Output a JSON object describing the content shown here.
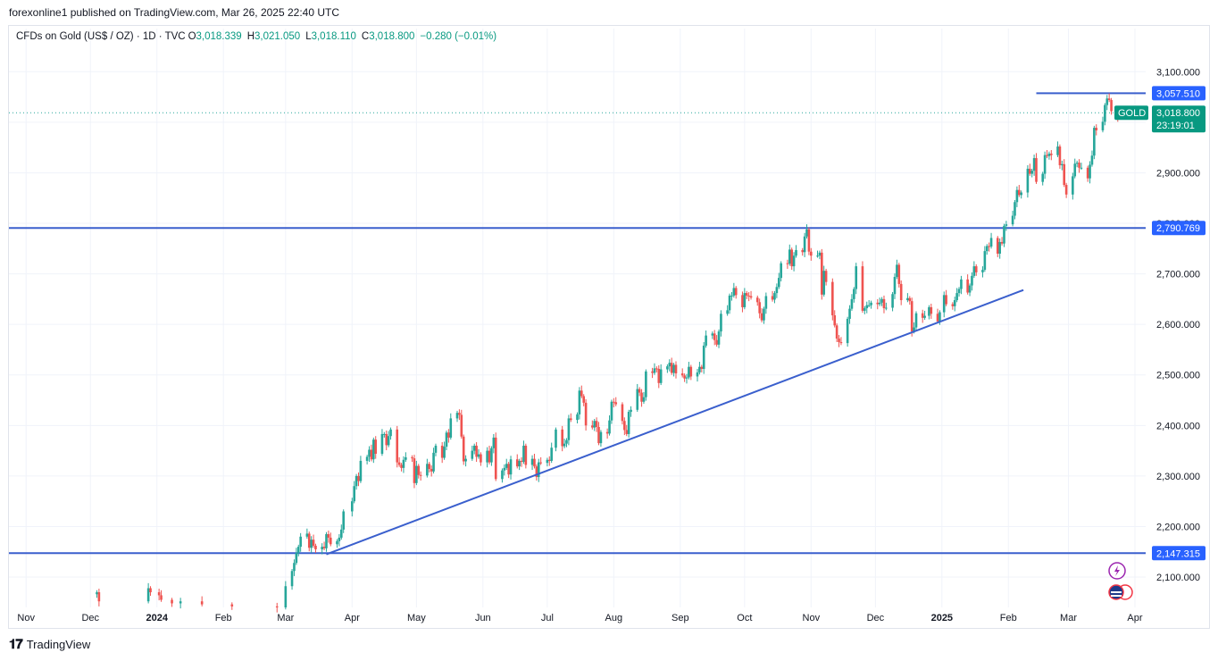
{
  "header": {
    "publisher_line": "forexonline1 published on TradingView.com, Mar 26, 2025 22:40 UTC"
  },
  "legend": {
    "symbol": "CFDs on Gold (US$ / OZ) · 1D · TVC",
    "open_label": "O",
    "open": "3,018.339",
    "high_label": "H",
    "high": "3,021.050",
    "low_label": "L",
    "low": "3,018.110",
    "close_label": "C",
    "close": "3,018.800",
    "change": "−0.280 (−0.01%)"
  },
  "footer": {
    "brand": "TradingView"
  },
  "colors": {
    "up": "#089981",
    "down": "#f23645",
    "line": "#2962ff",
    "trend": "#3a5fcd",
    "up_candle": "#26a69a",
    "down_candle": "#ef5350"
  },
  "chart_data": {
    "type": "candlestick",
    "symbol": "GOLD",
    "y_range": [
      2040,
      3150
    ],
    "y_ticks": [
      2100,
      2200,
      2300,
      2400,
      2500,
      2600,
      2700,
      2800,
      2900,
      3000,
      3100
    ],
    "y_tick_labels": [
      "2,100.000",
      "2,200.000",
      "2,300.000",
      "2,400.000",
      "2,500.000",
      "2,600.000",
      "2,700.000",
      "2,800.000",
      "2,900.000",
      "3,000.000",
      "3,100.000"
    ],
    "x_labels": [
      "Nov",
      "Dec",
      "2024",
      "Feb",
      "Mar",
      "Apr",
      "May",
      "Jun",
      "Jul",
      "Aug",
      "Sep",
      "Oct",
      "Nov",
      "Dec",
      "2025",
      "Feb",
      "Mar",
      "Apr"
    ],
    "x_label_dates": [
      "2023-11-01",
      "2023-12-01",
      "2024-01-01",
      "2024-02-01",
      "2024-03-01",
      "2024-04-01",
      "2024-05-01",
      "2024-06-01",
      "2024-07-01",
      "2024-08-01",
      "2024-09-01",
      "2024-10-01",
      "2024-11-01",
      "2024-12-01",
      "2025-01-01",
      "2025-02-01",
      "2025-03-01",
      "2025-04-01"
    ],
    "x_range": [
      "2023-10-24",
      "2025-04-06"
    ],
    "horizontal_lines": [
      {
        "price": 3057.51,
        "label": "3,057.510",
        "from": "2025-02-14",
        "to": "2025-04-06"
      },
      {
        "price": 2790.769,
        "label": "2,790.769",
        "from": "2023-10-24",
        "to": "2025-04-06"
      },
      {
        "price": 2147.315,
        "label": "2,147.315",
        "from": "2023-10-24",
        "to": "2025-04-06"
      }
    ],
    "trend_line": {
      "from": [
        "2024-03-20",
        2145
      ],
      "to": [
        "2025-02-08",
        2668
      ]
    },
    "last_price": {
      "price": 3018.8,
      "label": "3,018.800",
      "countdown": "23:19:01",
      "symbol_tag": "GOLD"
    },
    "closes": [
      [
        "2023-12-04",
        2070
      ],
      [
        "2023-12-05",
        2052
      ],
      [
        "2023-12-28",
        2078
      ],
      [
        "2023-12-29",
        2070
      ],
      [
        "2024-01-02",
        2064
      ],
      [
        "2024-01-03",
        2055
      ],
      [
        "2024-01-08",
        2048
      ],
      [
        "2024-01-12",
        2052
      ],
      [
        "2024-01-22",
        2046
      ],
      [
        "2024-02-05",
        2042
      ],
      [
        "2024-02-26",
        2040
      ],
      [
        "2024-03-01",
        2082
      ],
      [
        "2024-03-04",
        2112
      ],
      [
        "2024-03-05",
        2128
      ],
      [
        "2024-03-06",
        2148
      ],
      [
        "2024-03-07",
        2160
      ],
      [
        "2024-03-08",
        2180
      ],
      [
        "2024-03-11",
        2186
      ],
      [
        "2024-03-12",
        2158
      ],
      [
        "2024-03-13",
        2174
      ],
      [
        "2024-03-14",
        2162
      ],
      [
        "2024-03-15",
        2155
      ],
      [
        "2024-03-18",
        2160
      ],
      [
        "2024-03-19",
        2157
      ],
      [
        "2024-03-20",
        2185
      ],
      [
        "2024-03-21",
        2178
      ],
      [
        "2024-03-22",
        2165
      ],
      [
        "2024-03-25",
        2171
      ],
      [
        "2024-03-26",
        2178
      ],
      [
        "2024-03-27",
        2194
      ],
      [
        "2024-03-28",
        2230
      ],
      [
        "2024-04-01",
        2250
      ],
      [
        "2024-04-02",
        2280
      ],
      [
        "2024-04-03",
        2300
      ],
      [
        "2024-04-04",
        2290
      ],
      [
        "2024-04-05",
        2330
      ],
      [
        "2024-04-08",
        2338
      ],
      [
        "2024-04-09",
        2352
      ],
      [
        "2024-04-10",
        2333
      ],
      [
        "2024-04-11",
        2372
      ],
      [
        "2024-04-12",
        2344
      ],
      [
        "2024-04-15",
        2383
      ],
      [
        "2024-04-16",
        2383
      ],
      [
        "2024-04-17",
        2361
      ],
      [
        "2024-04-18",
        2379
      ],
      [
        "2024-04-19",
        2392
      ],
      [
        "2024-04-22",
        2327
      ],
      [
        "2024-04-23",
        2322
      ],
      [
        "2024-04-24",
        2316
      ],
      [
        "2024-04-25",
        2332
      ],
      [
        "2024-04-26",
        2337
      ],
      [
        "2024-04-29",
        2335
      ],
      [
        "2024-04-30",
        2286
      ],
      [
        "2024-05-01",
        2320
      ],
      [
        "2024-05-02",
        2302
      ],
      [
        "2024-05-03",
        2301
      ],
      [
        "2024-05-06",
        2324
      ],
      [
        "2024-05-07",
        2314
      ],
      [
        "2024-05-08",
        2309
      ],
      [
        "2024-05-09",
        2346
      ],
      [
        "2024-05-10",
        2360
      ],
      [
        "2024-05-13",
        2336
      ],
      [
        "2024-05-14",
        2358
      ],
      [
        "2024-05-15",
        2386
      ],
      [
        "2024-05-16",
        2376
      ],
      [
        "2024-05-17",
        2414
      ],
      [
        "2024-05-20",
        2425
      ],
      [
        "2024-05-21",
        2421
      ],
      [
        "2024-05-22",
        2378
      ],
      [
        "2024-05-23",
        2329
      ],
      [
        "2024-05-24",
        2334
      ],
      [
        "2024-05-27",
        2350
      ],
      [
        "2024-05-28",
        2360
      ],
      [
        "2024-05-29",
        2338
      ],
      [
        "2024-05-30",
        2343
      ],
      [
        "2024-05-31",
        2327
      ],
      [
        "2024-06-03",
        2350
      ],
      [
        "2024-06-04",
        2327
      ],
      [
        "2024-06-05",
        2355
      ],
      [
        "2024-06-06",
        2376
      ],
      [
        "2024-06-07",
        2294
      ],
      [
        "2024-06-10",
        2311
      ],
      [
        "2024-06-11",
        2316
      ],
      [
        "2024-06-12",
        2324
      ],
      [
        "2024-06-13",
        2303
      ],
      [
        "2024-06-14",
        2333
      ],
      [
        "2024-06-17",
        2319
      ],
      [
        "2024-06-18",
        2330
      ],
      [
        "2024-06-19",
        2328
      ],
      [
        "2024-06-20",
        2360
      ],
      [
        "2024-06-21",
        2322
      ],
      [
        "2024-06-24",
        2334
      ],
      [
        "2024-06-25",
        2319
      ],
      [
        "2024-06-26",
        2298
      ],
      [
        "2024-06-27",
        2327
      ],
      [
        "2024-06-28",
        2326
      ],
      [
        "2024-07-01",
        2332
      ],
      [
        "2024-07-02",
        2330
      ],
      [
        "2024-07-03",
        2356
      ],
      [
        "2024-07-05",
        2392
      ],
      [
        "2024-07-08",
        2359
      ],
      [
        "2024-07-09",
        2364
      ],
      [
        "2024-07-10",
        2371
      ],
      [
        "2024-07-11",
        2414
      ],
      [
        "2024-07-12",
        2411
      ],
      [
        "2024-07-15",
        2422
      ],
      [
        "2024-07-16",
        2469
      ],
      [
        "2024-07-17",
        2458
      ],
      [
        "2024-07-18",
        2445
      ],
      [
        "2024-07-19",
        2400
      ],
      [
        "2024-07-22",
        2396
      ],
      [
        "2024-07-23",
        2409
      ],
      [
        "2024-07-24",
        2397
      ],
      [
        "2024-07-25",
        2365
      ],
      [
        "2024-07-26",
        2387
      ],
      [
        "2024-07-29",
        2384
      ],
      [
        "2024-07-30",
        2410
      ],
      [
        "2024-07-31",
        2447
      ],
      [
        "2024-08-01",
        2446
      ],
      [
        "2024-08-02",
        2442
      ],
      [
        "2024-08-05",
        2409
      ],
      [
        "2024-08-06",
        2391
      ],
      [
        "2024-08-07",
        2383
      ],
      [
        "2024-08-08",
        2427
      ],
      [
        "2024-08-09",
        2431
      ],
      [
        "2024-08-12",
        2472
      ],
      [
        "2024-08-13",
        2465
      ],
      [
        "2024-08-14",
        2447
      ],
      [
        "2024-08-15",
        2456
      ],
      [
        "2024-08-16",
        2507
      ],
      [
        "2024-08-19",
        2504
      ],
      [
        "2024-08-20",
        2513
      ],
      [
        "2024-08-21",
        2512
      ],
      [
        "2024-08-22",
        2484
      ],
      [
        "2024-08-23",
        2511
      ],
      [
        "2024-08-26",
        2517
      ],
      [
        "2024-08-27",
        2524
      ],
      [
        "2024-08-28",
        2504
      ],
      [
        "2024-08-29",
        2520
      ],
      [
        "2024-08-30",
        2503
      ],
      [
        "2024-09-02",
        2499
      ],
      [
        "2024-09-03",
        2493
      ],
      [
        "2024-09-04",
        2495
      ],
      [
        "2024-09-05",
        2516
      ],
      [
        "2024-09-06",
        2497
      ],
      [
        "2024-09-09",
        2505
      ],
      [
        "2024-09-10",
        2516
      ],
      [
        "2024-09-11",
        2512
      ],
      [
        "2024-09-12",
        2558
      ],
      [
        "2024-09-13",
        2578
      ],
      [
        "2024-09-16",
        2582
      ],
      [
        "2024-09-17",
        2569
      ],
      [
        "2024-09-18",
        2560
      ],
      [
        "2024-09-19",
        2586
      ],
      [
        "2024-09-20",
        2621
      ],
      [
        "2024-09-23",
        2628
      ],
      [
        "2024-09-24",
        2657
      ],
      [
        "2024-09-25",
        2657
      ],
      [
        "2024-09-26",
        2672
      ],
      [
        "2024-09-27",
        2658
      ],
      [
        "2024-09-30",
        2634
      ],
      [
        "2024-10-01",
        2662
      ],
      [
        "2024-10-02",
        2657
      ],
      [
        "2024-10-03",
        2656
      ],
      [
        "2024-10-04",
        2653
      ],
      [
        "2024-10-07",
        2644
      ],
      [
        "2024-10-08",
        2622
      ],
      [
        "2024-10-09",
        2608
      ],
      [
        "2024-10-10",
        2631
      ],
      [
        "2024-10-11",
        2656
      ],
      [
        "2024-10-14",
        2649
      ],
      [
        "2024-10-15",
        2662
      ],
      [
        "2024-10-16",
        2674
      ],
      [
        "2024-10-17",
        2692
      ],
      [
        "2024-10-18",
        2721
      ],
      [
        "2024-10-21",
        2720
      ],
      [
        "2024-10-22",
        2748
      ],
      [
        "2024-10-23",
        2715
      ],
      [
        "2024-10-24",
        2736
      ],
      [
        "2024-10-25",
        2747
      ],
      [
        "2024-10-28",
        2743
      ],
      [
        "2024-10-29",
        2774
      ],
      [
        "2024-10-30",
        2788
      ],
      [
        "2024-10-31",
        2744
      ],
      [
        "2024-11-01",
        2736
      ],
      [
        "2024-11-04",
        2736
      ],
      [
        "2024-11-05",
        2742
      ],
      [
        "2024-11-06",
        2659
      ],
      [
        "2024-11-07",
        2706
      ],
      [
        "2024-11-08",
        2684
      ],
      [
        "2024-11-11",
        2618
      ],
      [
        "2024-11-12",
        2598
      ],
      [
        "2024-11-13",
        2572
      ],
      [
        "2024-11-14",
        2565
      ],
      [
        "2024-11-15",
        2563
      ],
      [
        "2024-11-18",
        2611
      ],
      [
        "2024-11-19",
        2631
      ],
      [
        "2024-11-20",
        2650
      ],
      [
        "2024-11-21",
        2670
      ],
      [
        "2024-11-22",
        2715
      ],
      [
        "2024-11-25",
        2627
      ],
      [
        "2024-11-26",
        2632
      ],
      [
        "2024-11-27",
        2638
      ],
      [
        "2024-11-28",
        2638
      ],
      [
        "2024-11-29",
        2643
      ],
      [
        "2024-12-02",
        2640
      ],
      [
        "2024-12-03",
        2643
      ],
      [
        "2024-12-04",
        2650
      ],
      [
        "2024-12-05",
        2632
      ],
      [
        "2024-12-06",
        2633
      ],
      [
        "2024-12-09",
        2660
      ],
      [
        "2024-12-10",
        2694
      ],
      [
        "2024-12-11",
        2718
      ],
      [
        "2024-12-12",
        2680
      ],
      [
        "2024-12-13",
        2648
      ],
      [
        "2024-12-16",
        2652
      ],
      [
        "2024-12-17",
        2646
      ],
      [
        "2024-12-18",
        2586
      ],
      [
        "2024-12-19",
        2594
      ],
      [
        "2024-12-20",
        2622
      ],
      [
        "2024-12-23",
        2613
      ],
      [
        "2024-12-24",
        2617
      ],
      [
        "2024-12-26",
        2634
      ],
      [
        "2024-12-27",
        2621
      ],
      [
        "2024-12-30",
        2606
      ],
      [
        "2024-12-31",
        2624
      ],
      [
        "2025-01-02",
        2658
      ],
      [
        "2025-01-03",
        2640
      ],
      [
        "2025-01-06",
        2636
      ],
      [
        "2025-01-07",
        2648
      ],
      [
        "2025-01-08",
        2662
      ],
      [
        "2025-01-09",
        2670
      ],
      [
        "2025-01-10",
        2689
      ],
      [
        "2025-01-13",
        2663
      ],
      [
        "2025-01-14",
        2677
      ],
      [
        "2025-01-15",
        2696
      ],
      [
        "2025-01-16",
        2715
      ],
      [
        "2025-01-17",
        2703
      ],
      [
        "2025-01-20",
        2708
      ],
      [
        "2025-01-21",
        2745
      ],
      [
        "2025-01-22",
        2755
      ],
      [
        "2025-01-23",
        2754
      ],
      [
        "2025-01-24",
        2771
      ],
      [
        "2025-01-27",
        2740
      ],
      [
        "2025-01-28",
        2763
      ],
      [
        "2025-01-29",
        2760
      ],
      [
        "2025-01-30",
        2795
      ],
      [
        "2025-01-31",
        2798
      ],
      [
        "2025-02-03",
        2815
      ],
      [
        "2025-02-04",
        2842
      ],
      [
        "2025-02-05",
        2866
      ],
      [
        "2025-02-06",
        2856
      ],
      [
        "2025-02-07",
        2861
      ],
      [
        "2025-02-10",
        2908
      ],
      [
        "2025-02-11",
        2898
      ],
      [
        "2025-02-12",
        2904
      ],
      [
        "2025-02-13",
        2929
      ],
      [
        "2025-02-14",
        2882
      ],
      [
        "2025-02-17",
        2898
      ],
      [
        "2025-02-18",
        2935
      ],
      [
        "2025-02-19",
        2933
      ],
      [
        "2025-02-20",
        2938
      ],
      [
        "2025-02-21",
        2935
      ],
      [
        "2025-02-24",
        2952
      ],
      [
        "2025-02-25",
        2915
      ],
      [
        "2025-02-26",
        2917
      ],
      [
        "2025-02-27",
        2876
      ],
      [
        "2025-02-28",
        2857
      ],
      [
        "2025-03-03",
        2893
      ],
      [
        "2025-03-04",
        2918
      ],
      [
        "2025-03-05",
        2920
      ],
      [
        "2025-03-06",
        2910
      ],
      [
        "2025-03-07",
        2910
      ],
      [
        "2025-03-10",
        2889
      ],
      [
        "2025-03-11",
        2916
      ],
      [
        "2025-03-12",
        2934
      ],
      [
        "2025-03-13",
        2989
      ],
      [
        "2025-03-14",
        2984
      ],
      [
        "2025-03-17",
        3001
      ],
      [
        "2025-03-18",
        3034
      ],
      [
        "2025-03-19",
        3047
      ],
      [
        "2025-03-20",
        3044
      ],
      [
        "2025-03-21",
        3022
      ],
      [
        "2025-03-24",
        3011
      ],
      [
        "2025-03-25",
        3020
      ],
      [
        "2025-03-26",
        3018.8
      ]
    ]
  }
}
